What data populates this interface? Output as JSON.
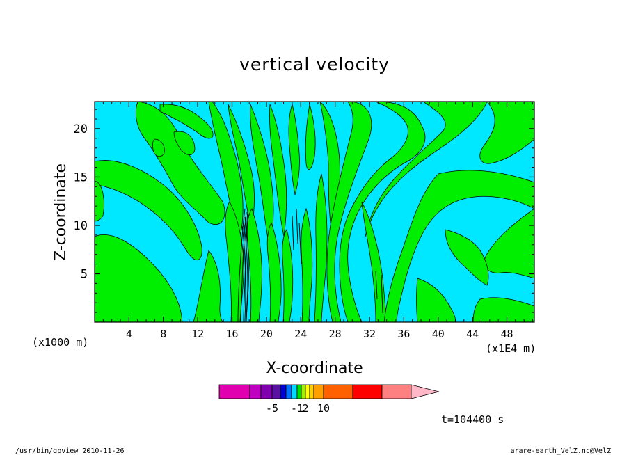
{
  "chart_data": {
    "type": "heatmap",
    "title": "vertical velocity",
    "xlabel": "X-coordinate",
    "ylabel": "Z-coordinate",
    "x_unit_left": "(x1000 m)",
    "x_unit_right": "(x1E4 m)",
    "xlim": [
      0,
      51.2
    ],
    "ylim": [
      0,
      22.8
    ],
    "xticks": [
      "4",
      "8",
      "12",
      "16",
      "20",
      "24",
      "28",
      "32",
      "36",
      "40",
      "44",
      "48"
    ],
    "xtick_values": [
      4,
      8,
      12,
      16,
      20,
      24,
      28,
      32,
      36,
      40,
      44,
      48
    ],
    "yticks": [
      "5",
      "10",
      "15",
      "20"
    ],
    "ytick_values": [
      5,
      10,
      15,
      20
    ],
    "field_colors": {
      "background_weak_negative": "#00e8ff",
      "weak_positive": "#00ee00",
      "contour_line": "#000000"
    },
    "updraft_column": {
      "x": 17.5,
      "z_top": 11.5
    },
    "colorbar": {
      "colors": [
        "#e000b0",
        "#c000c0",
        "#8000b0",
        "#5a10a0",
        "#0000d0",
        "#0070ff",
        "#00d8ff",
        "#00e000",
        "#a0f000",
        "#ffff00",
        "#ffd000",
        "#ffa000",
        "#ff6000",
        "#ff0000",
        "#ff8080",
        "#ffb8c8"
      ],
      "labels": [
        "-5",
        "-1",
        "2",
        "10"
      ]
    },
    "time_label": "t=104400 s"
  },
  "footer": {
    "left": "/usr/bin/gpview   2010-11-26",
    "right": "arare-earth_VelZ.nc@VelZ"
  }
}
